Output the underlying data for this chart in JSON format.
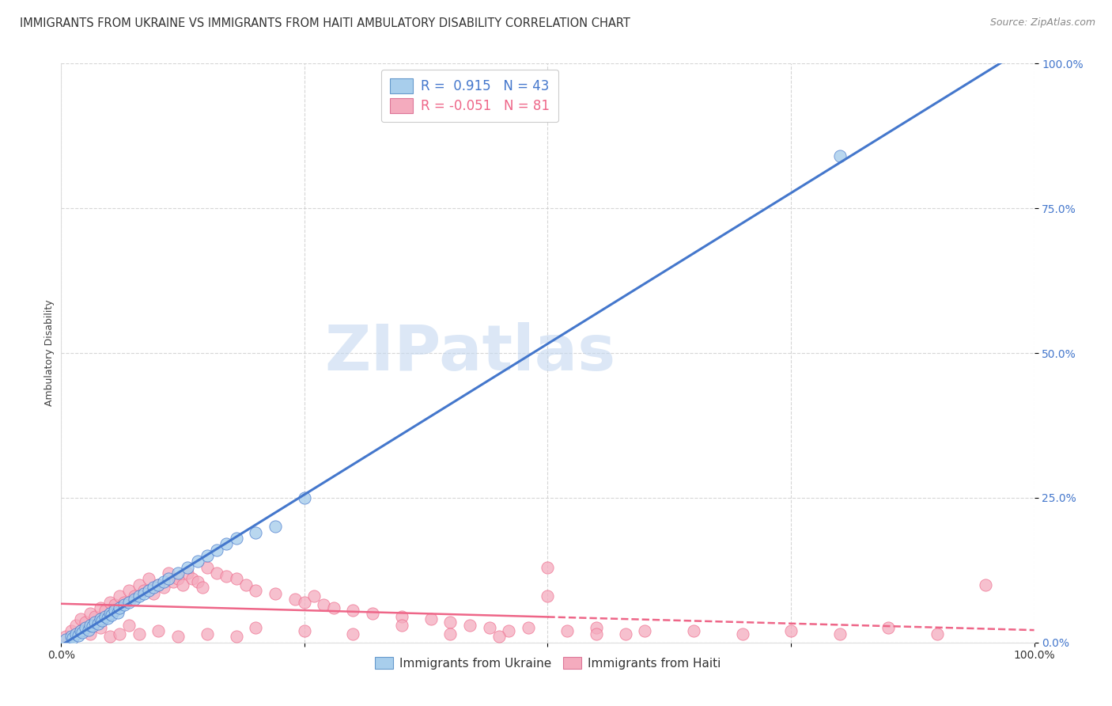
{
  "title": "IMMIGRANTS FROM UKRAINE VS IMMIGRANTS FROM HAITI AMBULATORY DISABILITY CORRELATION CHART",
  "source": "Source: ZipAtlas.com",
  "ylabel": "Ambulatory Disability",
  "xlim": [
    0,
    100
  ],
  "ylim": [
    0,
    100
  ],
  "yticks": [
    0,
    25,
    50,
    75,
    100
  ],
  "ytick_labels": [
    "0.0%",
    "25.0%",
    "50.0%",
    "75.0%",
    "100.0%"
  ],
  "watermark": "ZIPatlas",
  "legend_ukraine_R": "0.915",
  "legend_ukraine_N": "43",
  "legend_haiti_R": "-0.051",
  "legend_haiti_N": "81",
  "ukraine_color": "#A8CEEC",
  "haiti_color": "#F4ABBE",
  "ukraine_line_color": "#4477CC",
  "haiti_line_color": "#EE6688",
  "ukraine_scatter_x": [
    0.5,
    1.0,
    1.2,
    1.5,
    1.8,
    2.0,
    2.2,
    2.5,
    2.8,
    3.0,
    3.2,
    3.5,
    3.8,
    4.0,
    4.2,
    4.5,
    4.8,
    5.0,
    5.2,
    5.5,
    5.8,
    6.0,
    6.5,
    7.0,
    7.5,
    8.0,
    8.5,
    9.0,
    9.5,
    10.0,
    10.5,
    11.0,
    12.0,
    13.0,
    14.0,
    15.0,
    16.0,
    17.0,
    18.0,
    20.0,
    22.0,
    25.0,
    80.0
  ],
  "ukraine_scatter_y": [
    0.5,
    1.0,
    0.8,
    1.5,
    1.2,
    2.0,
    1.8,
    2.5,
    2.2,
    3.0,
    2.8,
    3.5,
    3.2,
    4.0,
    3.8,
    4.5,
    4.2,
    5.0,
    4.8,
    5.5,
    5.2,
    6.0,
    6.5,
    7.0,
    7.5,
    8.0,
    8.5,
    9.0,
    9.5,
    10.0,
    10.5,
    11.0,
    12.0,
    13.0,
    14.0,
    15.0,
    16.0,
    17.0,
    18.0,
    19.0,
    20.0,
    25.0,
    84.0
  ],
  "haiti_scatter_x": [
    0.5,
    1.0,
    1.5,
    2.0,
    2.5,
    3.0,
    3.5,
    4.0,
    4.5,
    5.0,
    5.5,
    6.0,
    6.5,
    7.0,
    7.5,
    8.0,
    8.5,
    9.0,
    9.5,
    10.0,
    10.5,
    11.0,
    11.5,
    12.0,
    12.5,
    13.0,
    13.5,
    14.0,
    14.5,
    15.0,
    16.0,
    17.0,
    18.0,
    19.0,
    20.0,
    22.0,
    24.0,
    25.0,
    26.0,
    27.0,
    28.0,
    30.0,
    32.0,
    35.0,
    38.0,
    40.0,
    42.0,
    44.0,
    46.0,
    48.0,
    50.0,
    52.0,
    55.0,
    58.0,
    60.0,
    65.0,
    70.0,
    75.0,
    80.0,
    85.0,
    90.0,
    95.0,
    2.0,
    3.0,
    4.0,
    5.0,
    6.0,
    7.0,
    8.0,
    10.0,
    12.0,
    15.0,
    18.0,
    20.0,
    25.0,
    30.0,
    35.0,
    40.0,
    45.0,
    50.0,
    55.0
  ],
  "haiti_scatter_y": [
    1.0,
    2.0,
    3.0,
    4.0,
    3.5,
    5.0,
    4.5,
    6.0,
    5.5,
    7.0,
    6.5,
    8.0,
    7.0,
    9.0,
    8.0,
    10.0,
    9.0,
    11.0,
    8.5,
    10.0,
    9.5,
    12.0,
    10.5,
    11.0,
    10.0,
    12.0,
    11.0,
    10.5,
    9.5,
    13.0,
    12.0,
    11.5,
    11.0,
    10.0,
    9.0,
    8.5,
    7.5,
    7.0,
    8.0,
    6.5,
    6.0,
    5.5,
    5.0,
    4.5,
    4.0,
    3.5,
    3.0,
    2.5,
    2.0,
    2.5,
    13.0,
    2.0,
    2.5,
    1.5,
    2.0,
    2.0,
    1.5,
    2.0,
    1.5,
    2.5,
    1.5,
    10.0,
    2.0,
    1.5,
    2.5,
    1.0,
    1.5,
    3.0,
    1.5,
    2.0,
    1.0,
    1.5,
    1.0,
    2.5,
    2.0,
    1.5,
    3.0,
    1.5,
    1.0,
    8.0,
    1.5
  ],
  "background_color": "#FFFFFF",
  "grid_color": "#CCCCCC"
}
